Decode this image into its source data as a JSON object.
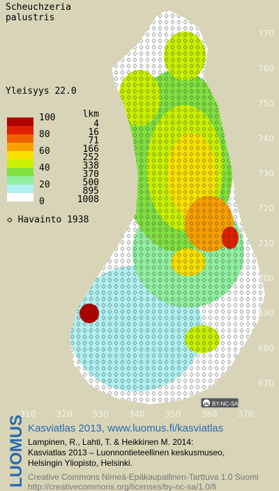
{
  "title": [
    "Scheuchzeria",
    "palustris"
  ],
  "frequency": "Yleisyys  22.0",
  "legend": {
    "percent_labels": [
      "100",
      "80",
      "60",
      "40",
      "20",
      "0"
    ],
    "count_header": "lkm",
    "counts": [
      "4",
      "16",
      "71",
      "166",
      "252",
      "338",
      "370",
      "500",
      "895",
      "1008"
    ],
    "colors": [
      "#b00000",
      "#e02000",
      "#f06000",
      "#f8a000",
      "#f8e000",
      "#c8f000",
      "#80e040",
      "#90f0a0",
      "#b0f0f0",
      "#ffffff"
    ]
  },
  "observation": "◇ Havainto 1938",
  "grid": {
    "y_labels": [
      "770",
      "760",
      "750",
      "740",
      "730",
      "720",
      "710",
      "700",
      "690",
      "680",
      "670"
    ],
    "x_labels": [
      "310",
      "320",
      "330",
      "340",
      "350",
      "360",
      "370"
    ]
  },
  "license_badge": "BY-NC-SA",
  "footer": {
    "logo": "LUOMUS",
    "heading": "Kasviatlas 2013, www.luomus.fi/kasviatlas",
    "citation": [
      "Lampinen, R., Lahti, T. & Heikkinen M. 2014:",
      "Kasviatlas 2013 – Luonnontieteellinen keskusmuseo,",
      "Helsingin Yliopisto, Helsinki."
    ],
    "license": [
      "Creative Commons Nimeä-Epäkaupallinen-Tarttuva 1.0 Suomi",
      "http://creativecommons.org/licenses/by-nc-sa/1.0/fi"
    ]
  }
}
